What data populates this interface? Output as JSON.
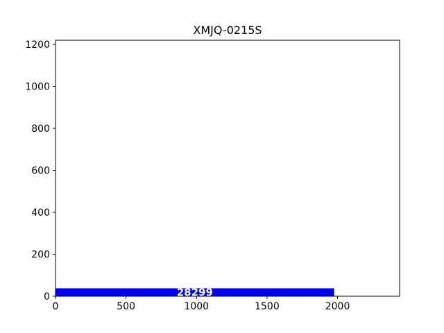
{
  "chart_data": {
    "type": "bar",
    "orientation": "horizontal",
    "title": "XMJQ-0215S",
    "xlabel": "",
    "ylabel": "",
    "xlim": [
      0,
      2440
    ],
    "ylim": [
      0,
      1220
    ],
    "x_ticks": [
      "0",
      "500",
      "1000",
      "1500",
      "2000"
    ],
    "y_ticks": [
      "0",
      "200",
      "400",
      "600",
      "800",
      "1000",
      "1200"
    ],
    "grid": false,
    "bars": [
      {
        "x_start": 0,
        "x_end": 1976,
        "y_start": 0,
        "y_end": 38,
        "label": "28299",
        "color": "#0000ff"
      }
    ]
  }
}
